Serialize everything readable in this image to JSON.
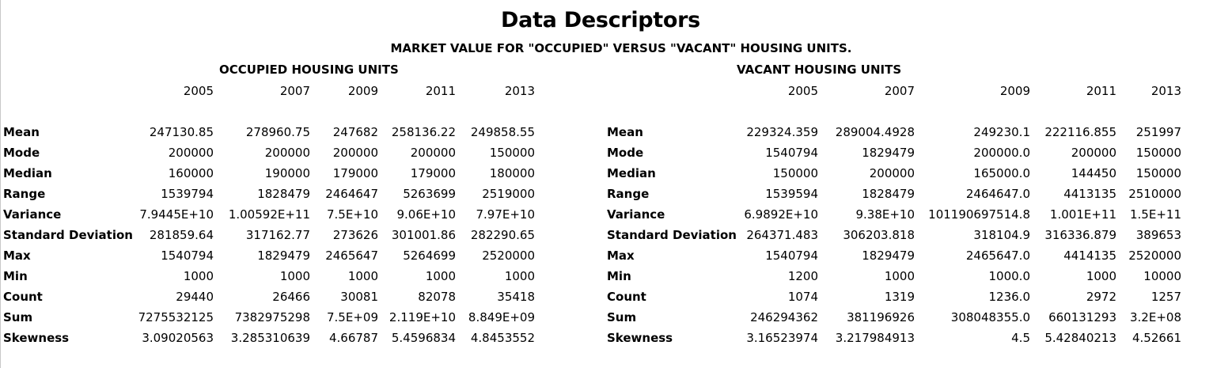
{
  "title": "Data Descriptors",
  "subtitle": "MARKET VALUE FOR \"OCCUPIED\" VERSUS \"VACANT\" HOUSING UNITS.",
  "occupied": {
    "heading": "OCCUPIED HOUSING UNITS",
    "years": [
      "2005",
      "2007",
      "2009",
      "2011",
      "2013"
    ],
    "rows": [
      {
        "label": "Mean",
        "values": [
          "247130.85",
          "278960.75",
          "247682",
          "258136.22",
          "249858.55"
        ]
      },
      {
        "label": "Mode",
        "values": [
          "200000",
          "200000",
          "200000",
          "200000",
          "150000"
        ]
      },
      {
        "label": "Median",
        "values": [
          "160000",
          "190000",
          "179000",
          "179000",
          "180000"
        ]
      },
      {
        "label": "Range",
        "values": [
          "1539794",
          "1828479",
          "2464647",
          "5263699",
          "2519000"
        ]
      },
      {
        "label": "Variance",
        "values": [
          "7.9445E+10",
          "1.00592E+11",
          "7.5E+10",
          "9.06E+10",
          "7.97E+10"
        ]
      },
      {
        "label": "Standard Deviation",
        "values": [
          "281859.64",
          "317162.77",
          "273626",
          "301001.86",
          "282290.65"
        ]
      },
      {
        "label": "Max",
        "values": [
          "1540794",
          "1829479",
          "2465647",
          "5264699",
          "2520000"
        ]
      },
      {
        "label": "Min",
        "values": [
          "1000",
          "1000",
          "1000",
          "1000",
          "1000"
        ]
      },
      {
        "label": "Count",
        "values": [
          "29440",
          "26466",
          "30081",
          "82078",
          "35418"
        ]
      },
      {
        "label": "Sum",
        "values": [
          "7275532125",
          "7382975298",
          "7.5E+09",
          "2.119E+10",
          "8.849E+09"
        ]
      },
      {
        "label": "Skewness",
        "values": [
          "3.09020563",
          "3.285310639",
          "4.66787",
          "5.4596834",
          "4.8453552"
        ]
      }
    ]
  },
  "vacant": {
    "heading": "VACANT HOUSING UNITS",
    "years": [
      "2005",
      "2007",
      "2009",
      "2011",
      "2013"
    ],
    "rows": [
      {
        "label": "Mean",
        "values": [
          "229324.359",
          "289004.4928",
          "249230.1",
          "222116.855",
          "251997"
        ]
      },
      {
        "label": "Mode",
        "values": [
          "1540794",
          "1829479",
          "200000.0",
          "200000",
          "150000"
        ]
      },
      {
        "label": "Median",
        "values": [
          "150000",
          "200000",
          "165000.0",
          "144450",
          "150000"
        ]
      },
      {
        "label": "Range",
        "values": [
          "1539594",
          "1828479",
          "2464647.0",
          "4413135",
          "2510000"
        ]
      },
      {
        "label": "Variance",
        "values": [
          "6.9892E+10",
          "9.38E+10",
          "101190697514.8",
          "1.001E+11",
          "1.5E+11"
        ]
      },
      {
        "label": "Standard Deviation",
        "values": [
          "264371.483",
          "306203.818",
          "318104.9",
          "316336.879",
          "389653"
        ]
      },
      {
        "label": "Max",
        "values": [
          "1540794",
          "1829479",
          "2465647.0",
          "4414135",
          "2520000"
        ]
      },
      {
        "label": "Min",
        "values": [
          "1200",
          "1000",
          "1000.0",
          "1000",
          "10000"
        ]
      },
      {
        "label": "Count",
        "values": [
          "1074",
          "1319",
          "1236.0",
          "2972",
          "1257"
        ]
      },
      {
        "label": "Sum",
        "values": [
          "246294362",
          "381196926",
          "308048355.0",
          "660131293",
          "3.2E+08"
        ]
      },
      {
        "label": "Skewness",
        "values": [
          "3.16523974",
          "3.217984913",
          "4.5",
          "5.42840213",
          "4.52661"
        ]
      }
    ]
  }
}
